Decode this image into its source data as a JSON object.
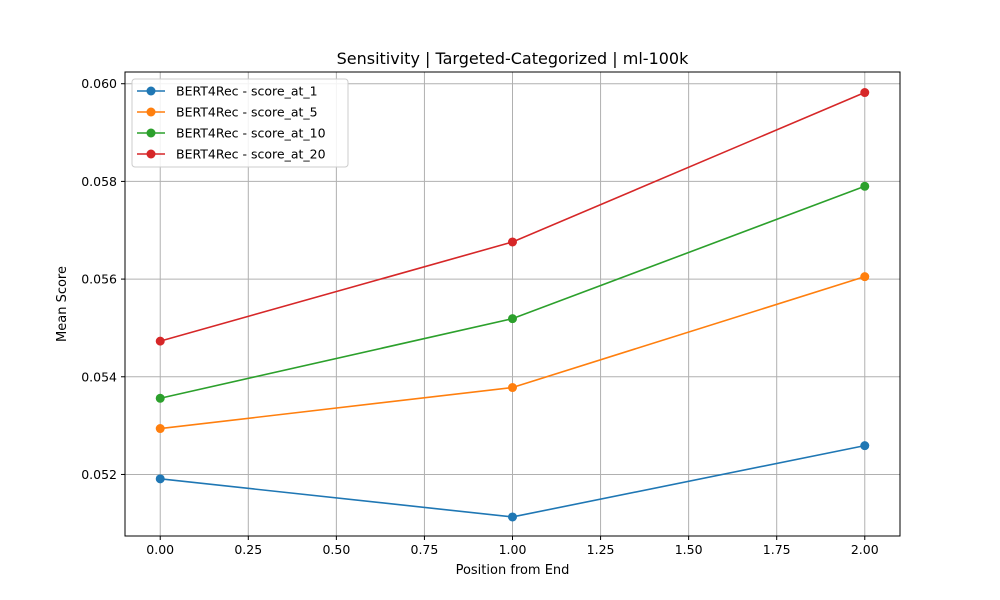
{
  "chart_data": {
    "type": "line",
    "title": "Sensitivity | Targeted-Categorized | ml-100k",
    "xlabel": "Position from End",
    "ylabel": "Mean Score",
    "xlim": [
      -0.1,
      2.1
    ],
    "ylim": [
      0.05074,
      0.06024
    ],
    "xticks": [
      0.0,
      0.25,
      0.5,
      0.75,
      1.0,
      1.25,
      1.5,
      1.75,
      2.0
    ],
    "xtick_labels": [
      "0.00",
      "0.25",
      "0.50",
      "0.75",
      "1.00",
      "1.25",
      "1.50",
      "1.75",
      "2.00"
    ],
    "yticks": [
      0.052,
      0.054,
      0.056,
      0.058,
      0.06
    ],
    "ytick_labels": [
      "0.052",
      "0.054",
      "0.056",
      "0.058",
      "0.060"
    ],
    "grid": true,
    "legend_position": "top-left",
    "x": [
      0,
      1,
      2
    ],
    "series": [
      {
        "name": "BERT4Rec - score_at_1",
        "color": "#1f77b4",
        "values": [
          0.05191,
          0.05113,
          0.05259
        ]
      },
      {
        "name": "BERT4Rec - score_at_5",
        "color": "#ff7f0e",
        "values": [
          0.05294,
          0.05378,
          0.05605
        ]
      },
      {
        "name": "BERT4Rec - score_at_10",
        "color": "#2ca02c",
        "values": [
          0.05356,
          0.05519,
          0.0579
        ]
      },
      {
        "name": "BERT4Rec - score_at_20",
        "color": "#d62728",
        "values": [
          0.05473,
          0.05676,
          0.05982
        ]
      }
    ]
  }
}
